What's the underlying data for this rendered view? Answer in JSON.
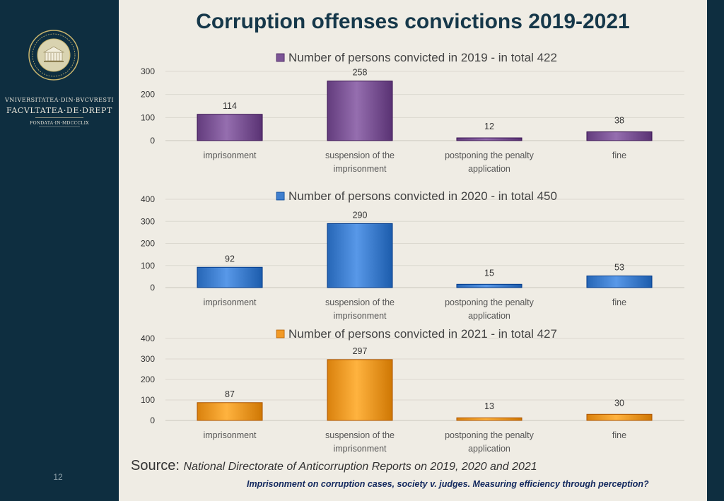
{
  "title": "Corruption offenses convictions 2019-2021",
  "sidebar": {
    "line1": "VNIVERSITATEA·DIN·BVCVRESTI",
    "line2": "FACVLTATEA·DE·DREPT",
    "line3": "FONDATA·IN·MDCCCLIX",
    "page_number": "12"
  },
  "source": {
    "label": "Source:",
    "text": "National Directorate of Anticorruption Reports on 2019, 2020 and 2021"
  },
  "footer_note": "Imprisonment on corruption cases, society v. judges. Measuring efficiency through perception?",
  "chart_data": [
    {
      "type": "bar",
      "title": "Number of persons convicted in 2019 - in total 422",
      "categories": [
        [
          "imprisonment"
        ],
        [
          "suspension of the",
          "imprisonment"
        ],
        [
          "postponing the penalty",
          "application"
        ],
        [
          "fine"
        ]
      ],
      "values": [
        114,
        258,
        12,
        38
      ],
      "ylim": [
        0,
        300
      ],
      "yticks": [
        0,
        100,
        200,
        300
      ],
      "color": "#7c5596",
      "grid": true,
      "legend": "top-center"
    },
    {
      "type": "bar",
      "title": "Number of persons convicted in 2020 - in total 450",
      "categories": [
        [
          "imprisonment"
        ],
        [
          "suspension of the",
          "imprisonment"
        ],
        [
          "postponing the penalty",
          "application"
        ],
        [
          "fine"
        ]
      ],
      "values": [
        92,
        290,
        15,
        53
      ],
      "ylim": [
        0,
        400
      ],
      "yticks": [
        0,
        100,
        200,
        300,
        400
      ],
      "color": "#3f7fcf",
      "grid": true,
      "legend": "top-center"
    },
    {
      "type": "bar",
      "title": "Number of persons convicted in 2021 - in total 427",
      "categories": [
        [
          "imprisonment"
        ],
        [
          "suspension of the",
          "imprisonment"
        ],
        [
          "postponing the penalty",
          "application"
        ],
        [
          "fine"
        ]
      ],
      "values": [
        87,
        297,
        13,
        30
      ],
      "ylim": [
        0,
        400
      ],
      "yticks": [
        0,
        100,
        200,
        300,
        400
      ],
      "color": "#f29a26",
      "grid": true,
      "legend": "top-center"
    }
  ]
}
